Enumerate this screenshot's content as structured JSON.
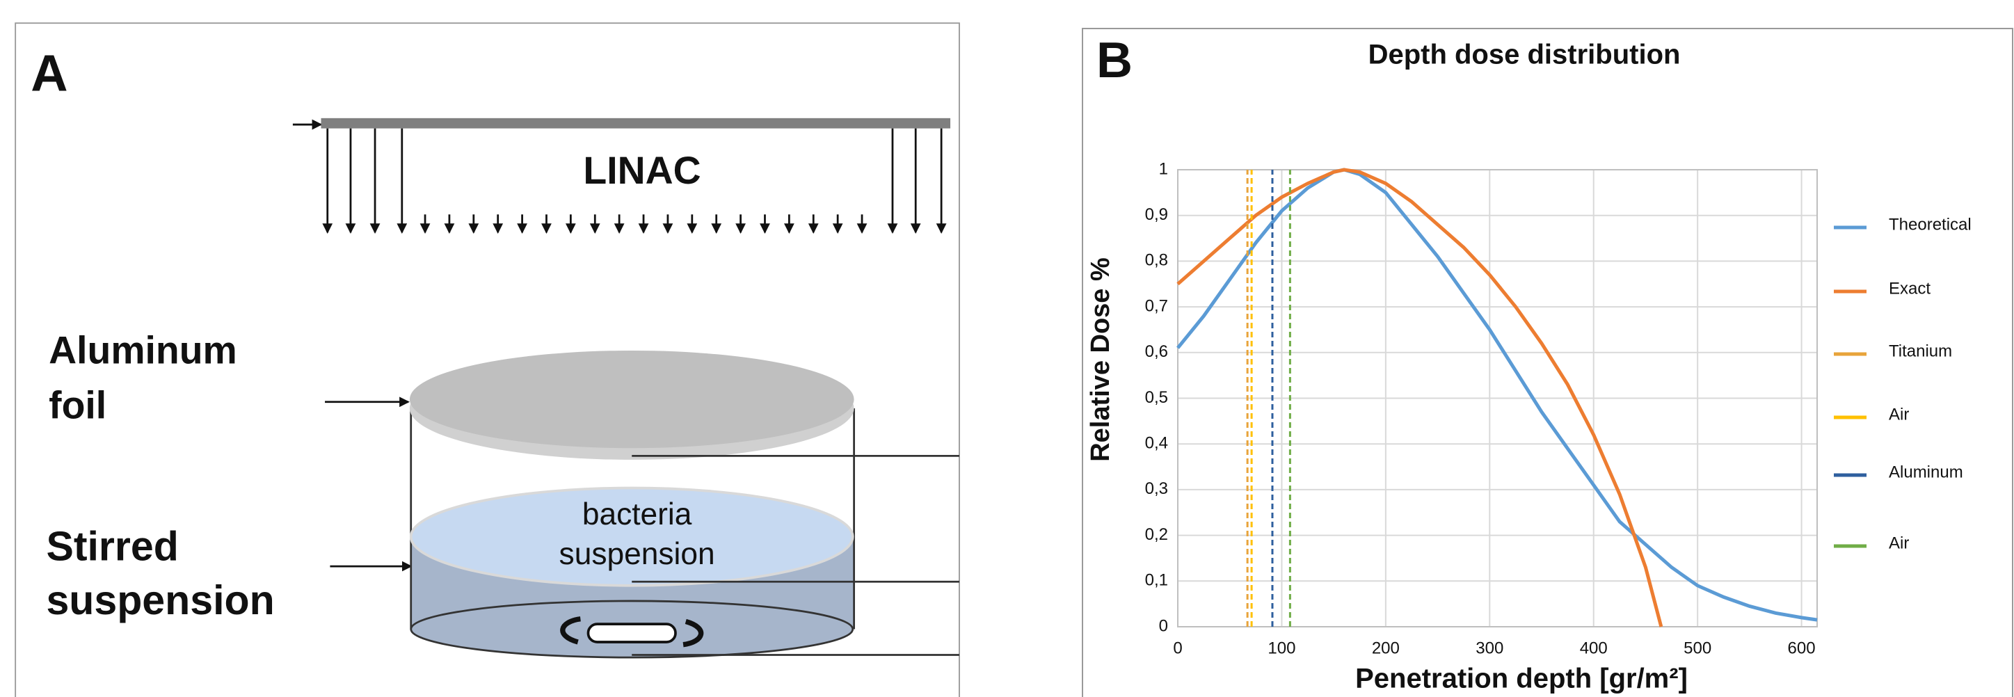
{
  "diagram": {
    "label": "A",
    "linac": "LINAC",
    "foil_label": [
      "Aluminum",
      "foil"
    ],
    "stirred_label": [
      "Stirred",
      "suspension"
    ],
    "liquid_label": [
      "bacteria",
      "suspension"
    ]
  },
  "chart_data": {
    "type": "line",
    "panel_label": "B",
    "title": "Depth dose distribution",
    "x_label": "Penetration depth  [gr/m²]",
    "y_label": "Relative Dose  %",
    "xlim": [
      0,
      615
    ],
    "ylim": [
      0,
      1
    ],
    "xticks": [
      0,
      100,
      200,
      300,
      400,
      500,
      600
    ],
    "yticks": [
      0,
      {
        "value": 0.1,
        "label": "0,1"
      },
      {
        "value": 0.2,
        "label": "0,2"
      },
      {
        "value": 0.3,
        "label": "0,3"
      },
      {
        "value": 0.4,
        "label": "0,4"
      },
      {
        "value": 0.5,
        "label": "0,5"
      },
      {
        "value": 0.6,
        "label": "0,6"
      },
      {
        "value": 0.7,
        "label": "0,7"
      },
      {
        "value": 0.8,
        "label": "0,8"
      },
      {
        "value": 0.9,
        "label": "0,9"
      },
      1
    ],
    "grid": true,
    "legend": "right",
    "series": [
      {
        "name": "Theoretical",
        "color": "#5b9bd5",
        "dashed": false,
        "x": [
          0,
          25,
          50,
          75,
          100,
          125,
          150,
          160,
          175,
          200,
          225,
          250,
          275,
          300,
          325,
          350,
          375,
          400,
          425,
          450,
          475,
          500,
          525,
          550,
          575,
          600,
          615
        ],
        "values": [
          0.61,
          0.68,
          0.76,
          0.84,
          0.91,
          0.96,
          0.995,
          1.0,
          0.99,
          0.95,
          0.88,
          0.81,
          0.73,
          0.65,
          0.56,
          0.47,
          0.39,
          0.31,
          0.23,
          0.18,
          0.13,
          0.09,
          0.065,
          0.045,
          0.03,
          0.02,
          0.015
        ]
      },
      {
        "name": "Exact",
        "color": "#ed7d31",
        "dashed": false,
        "x": [
          0,
          25,
          50,
          75,
          100,
          125,
          150,
          160,
          175,
          200,
          225,
          250,
          275,
          300,
          325,
          350,
          375,
          400,
          425,
          450,
          465
        ],
        "values": [
          0.75,
          0.8,
          0.85,
          0.9,
          0.94,
          0.97,
          0.995,
          1.0,
          0.995,
          0.97,
          0.93,
          0.88,
          0.83,
          0.77,
          0.7,
          0.62,
          0.53,
          0.42,
          0.29,
          0.13,
          0
        ]
      },
      {
        "name": "Titanium",
        "color": "#e8a33a",
        "dashed": true,
        "x": [
          67,
          67
        ],
        "values": [
          0,
          1
        ]
      },
      {
        "name": "Air",
        "color": "#ffc000",
        "dashed": true,
        "x": [
          71,
          71
        ],
        "values": [
          0,
          1
        ]
      },
      {
        "name": "Aluminum",
        "color": "#2e5f9e",
        "dashed": true,
        "x": [
          91,
          91
        ],
        "values": [
          0,
          1
        ]
      },
      {
        "name": "Air",
        "color": "#70ad47",
        "dashed": true,
        "x": [
          108,
          108
        ],
        "values": [
          0,
          1
        ]
      }
    ]
  }
}
